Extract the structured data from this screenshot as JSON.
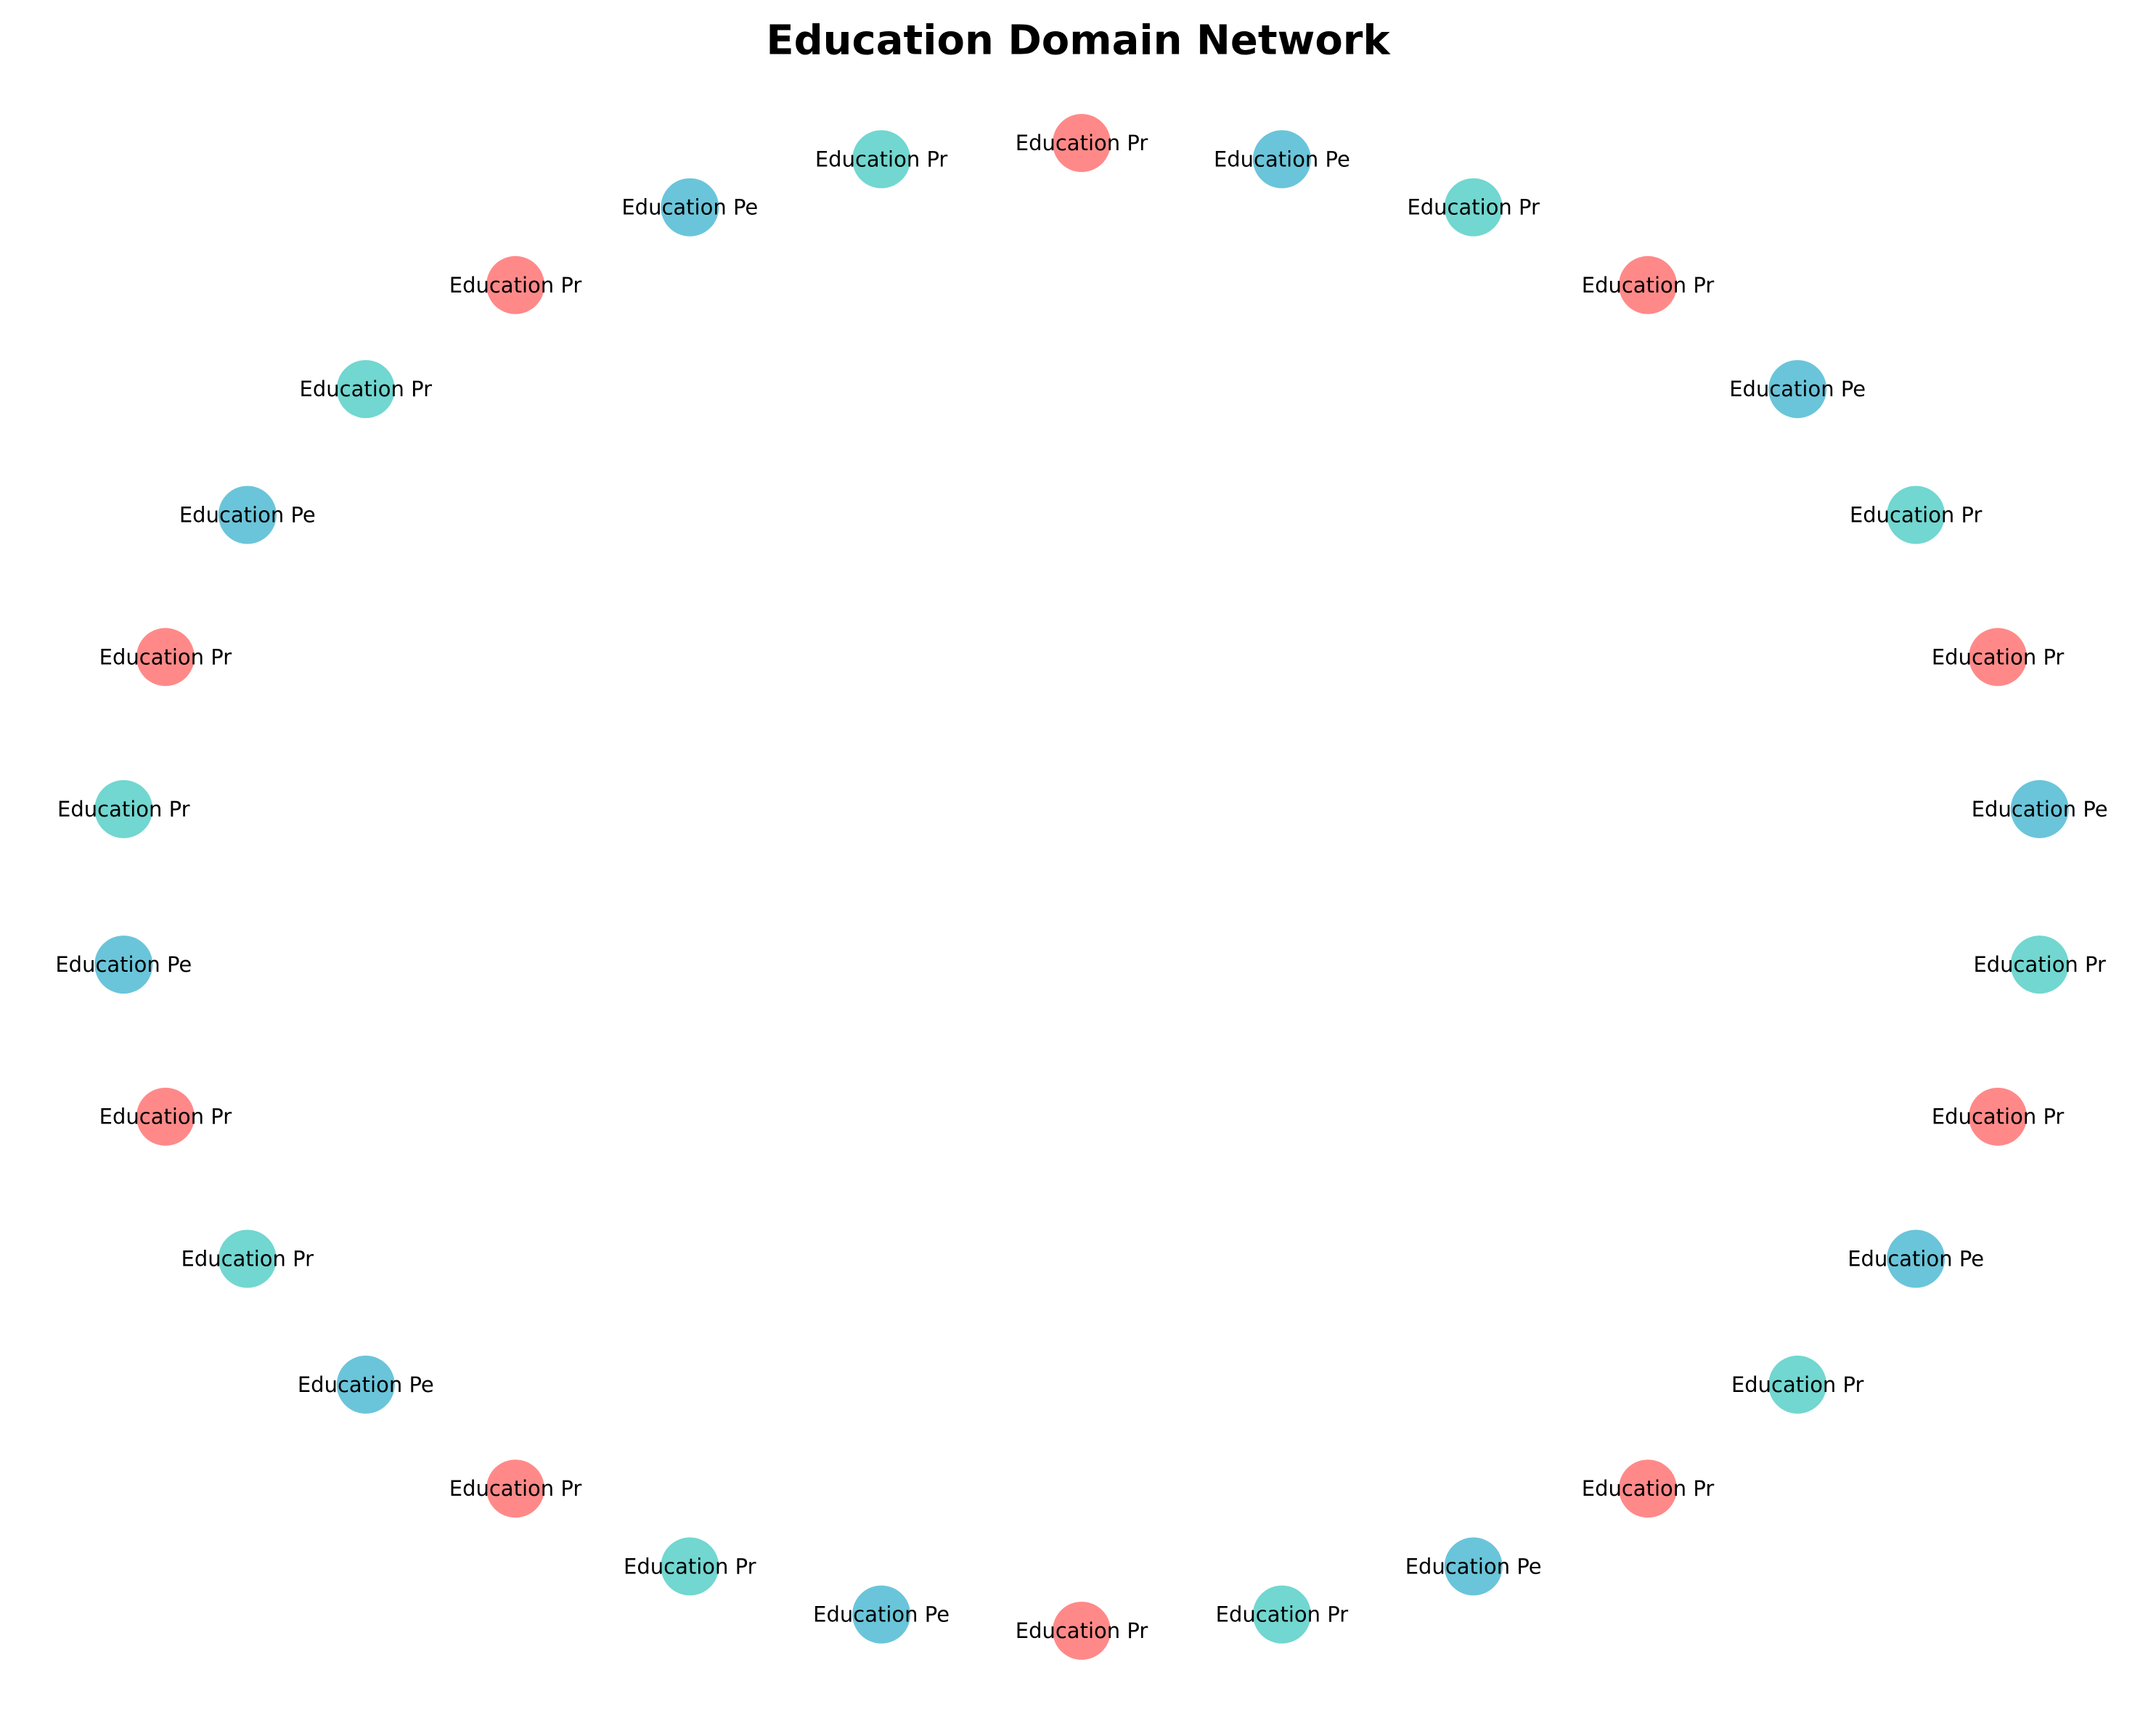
{
  "title": "Education Domain Network",
  "colors": {
    "group_red": "#ff6b6b",
    "group_teal": "#4ecdc4",
    "group_blue": "#45b7d1",
    "text": "#000000",
    "background": "#ffffff"
  },
  "nodes": [
    {
      "label": "Education Pr",
      "color": "group_red"
    },
    {
      "label": "Education Pe",
      "color": "group_blue"
    },
    {
      "label": "Education Pr",
      "color": "group_teal"
    },
    {
      "label": "Education Pr",
      "color": "group_red"
    },
    {
      "label": "Education Pe",
      "color": "group_blue"
    },
    {
      "label": "Education Pr",
      "color": "group_teal"
    },
    {
      "label": "Education Pr",
      "color": "group_red"
    },
    {
      "label": "Education Pe",
      "color": "group_blue"
    },
    {
      "label": "Education Pr",
      "color": "group_teal"
    },
    {
      "label": "Education Pr",
      "color": "group_red"
    },
    {
      "label": "Education Pe",
      "color": "group_blue"
    },
    {
      "label": "Education Pr",
      "color": "group_teal"
    },
    {
      "label": "Education Pr",
      "color": "group_red"
    },
    {
      "label": "Education Pe",
      "color": "group_blue"
    },
    {
      "label": "Education Pr",
      "color": "group_teal"
    },
    {
      "label": "Education Pr",
      "color": "group_red"
    },
    {
      "label": "Education Pe",
      "color": "group_blue"
    },
    {
      "label": "Education Pr",
      "color": "group_teal"
    },
    {
      "label": "Education Pr",
      "color": "group_red"
    },
    {
      "label": "Education Pe",
      "color": "group_blue"
    },
    {
      "label": "Education Pr",
      "color": "group_teal"
    },
    {
      "label": "Education Pr",
      "color": "group_red"
    },
    {
      "label": "Education Pe",
      "color": "group_blue"
    },
    {
      "label": "Education Pr",
      "color": "group_teal"
    },
    {
      "label": "Education Pr",
      "color": "group_red"
    },
    {
      "label": "Education Pe",
      "color": "group_blue"
    },
    {
      "label": "Education Pr",
      "color": "group_teal"
    },
    {
      "label": "Education Pr",
      "color": "group_red"
    },
    {
      "label": "Education Pe",
      "color": "group_blue"
    },
    {
      "label": "Education Pr",
      "color": "group_teal"
    }
  ]
}
